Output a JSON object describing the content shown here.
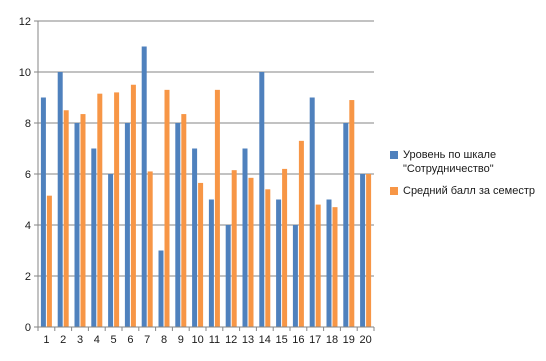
{
  "chart_data": {
    "type": "bar",
    "categories": [
      "1",
      "2",
      "3",
      "4",
      "5",
      "6",
      "7",
      "8",
      "9",
      "10",
      "11",
      "12",
      "13",
      "14",
      "15",
      "16",
      "17",
      "18",
      "19",
      "20"
    ],
    "series": [
      {
        "name": "Уровень по шкале \"Сотрудничество\"",
        "color": "#4f81bd",
        "values": [
          9,
          10,
          8,
          7,
          6,
          8,
          11,
          3,
          8,
          7,
          5,
          4,
          7,
          10,
          5,
          4,
          9,
          5,
          8,
          6
        ]
      },
      {
        "name": "Средний балл за семестр",
        "color": "#f79646",
        "values": [
          5.15,
          8.5,
          8.35,
          9.15,
          9.2,
          9.5,
          6.1,
          9.3,
          8.35,
          5.65,
          9.3,
          6.15,
          5.85,
          5.4,
          6.2,
          7.3,
          4.8,
          4.7,
          8.9,
          6
        ]
      }
    ],
    "yticks": [
      "0",
      "2",
      "4",
      "6",
      "8",
      "10",
      "12"
    ],
    "ylim": [
      0,
      12
    ],
    "grid": true,
    "legend": "right",
    "title": "",
    "xlabel": "",
    "ylabel": ""
  },
  "legend": {
    "series_1_label": "Уровень по шкале\n\"Сотрудничество\"",
    "series_2_label": "Средний балл за семестр"
  }
}
